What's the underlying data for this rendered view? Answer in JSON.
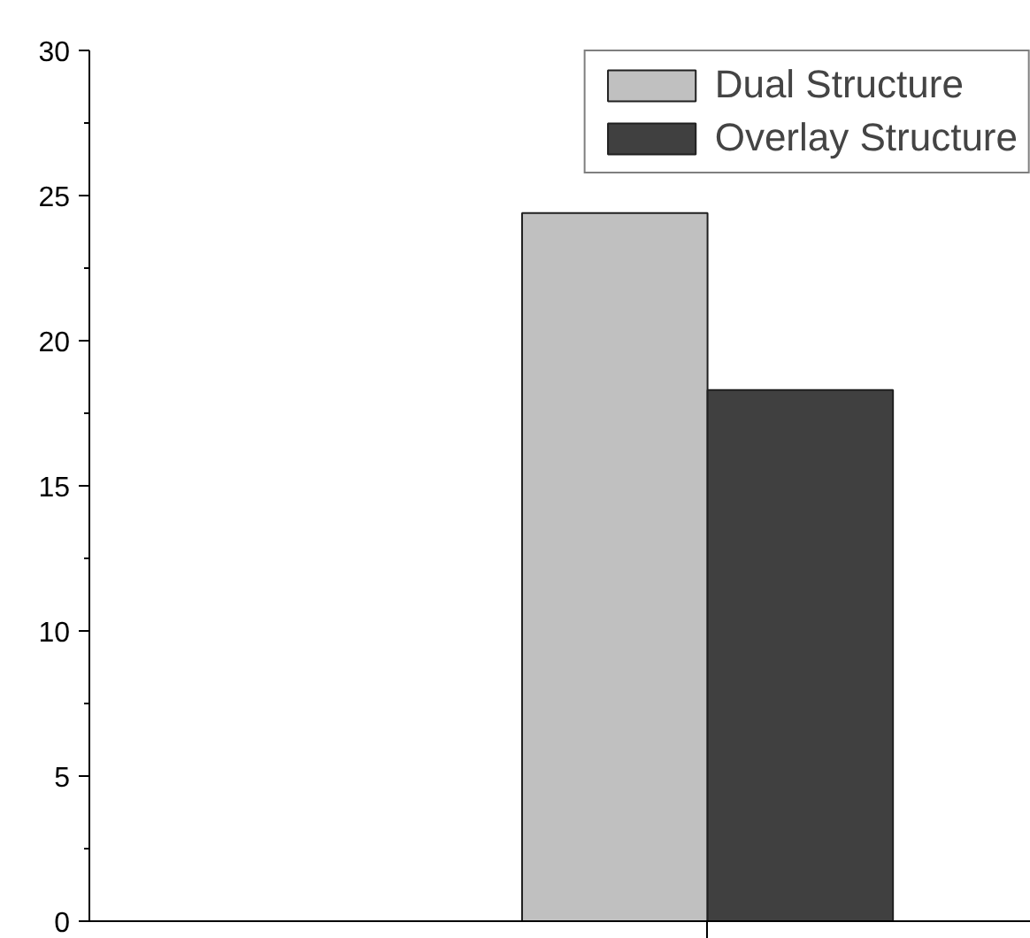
{
  "chart_data": {
    "type": "bar",
    "categories": [
      null
    ],
    "series": [
      {
        "name": "Dual Structure",
        "color": "#c0c0c0",
        "values": [
          24.4
        ]
      },
      {
        "name": "Overlay Structure",
        "color": "#404040",
        "values": [
          18.3
        ]
      }
    ],
    "ylim": [
      0,
      30
    ],
    "yticks": [
      0,
      5,
      10,
      15,
      20,
      25,
      30
    ],
    "grid": false,
    "legend": "top right",
    "tick_labels": "y"
  }
}
